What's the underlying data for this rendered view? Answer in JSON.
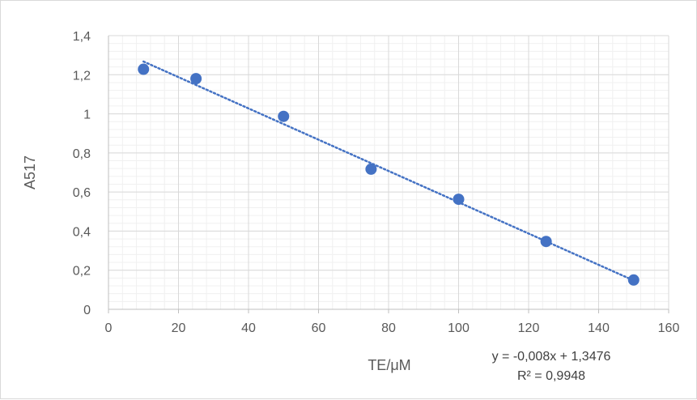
{
  "chart_data": {
    "type": "scatter",
    "title": "",
    "xlabel": "TE/μM",
    "ylabel": "A517",
    "xlim": [
      0,
      160
    ],
    "ylim": [
      0,
      1.4
    ],
    "x_ticks": [
      0,
      20,
      40,
      60,
      80,
      100,
      120,
      140,
      160
    ],
    "y_ticks": [
      0,
      0.2,
      0.4,
      0.6,
      0.8,
      1.0,
      1.2,
      1.4
    ],
    "x_tick_labels": [
      "0",
      "20",
      "40",
      "60",
      "80",
      "100",
      "120",
      "140",
      "160"
    ],
    "y_tick_labels": [
      "0",
      "0,2",
      "0,4",
      "0,6",
      "0,8",
      "1",
      "1,2",
      "1,4"
    ],
    "grid": true,
    "minor_grid": true,
    "legend": "none",
    "series": [
      {
        "color": "#4472c4",
        "points": [
          {
            "x": 10,
            "y": 1.228
          },
          {
            "x": 25,
            "y": 1.18
          },
          {
            "x": 50,
            "y": 0.987
          },
          {
            "x": 75,
            "y": 0.717
          },
          {
            "x": 100,
            "y": 0.563
          },
          {
            "x": 125,
            "y": 0.347
          },
          {
            "x": 150,
            "y": 0.15
          }
        ]
      }
    ],
    "trendline": {
      "type": "linear",
      "slope": -0.008,
      "intercept": 1.3476,
      "x_range": [
        10,
        150
      ],
      "style": "dotted",
      "color": "#4472c4",
      "equation": "y = -0,008x + 1,3476",
      "r_squared": "R² = 0,9948"
    }
  }
}
